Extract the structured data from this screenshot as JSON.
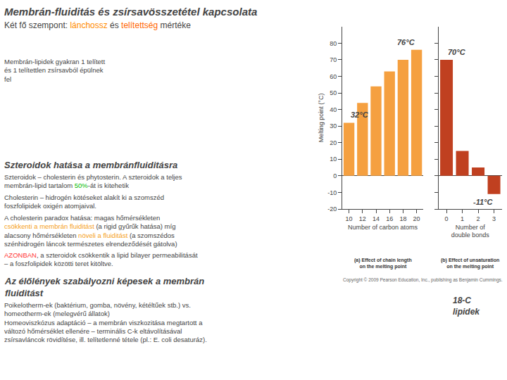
{
  "title": "Membrán-fluiditás és zsírsavösszetétel kapcsolata",
  "subtitle": [
    {
      "text": "Két fő szempont: "
    },
    {
      "text": "lánchossz",
      "color": "#FF8C00"
    },
    {
      "text": " és "
    },
    {
      "text": "telítettség",
      "color": "#FF6600"
    },
    {
      "text": " mértéke"
    }
  ],
  "sections": [
    {
      "paragraphs": [
        [
          [
            {
              "text": "Membrán-lipidek gyakran 1 telített"
            }
          ],
          [
            {
              "text": "és 1 telítettlen zsírsavból épülnek"
            }
          ],
          [
            {
              "text": "fel"
            }
          ]
        ]
      ]
    },
    {
      "title": "Szteroidok hatása a membránfluiditásra",
      "paragraphs": [
        [
          [
            {
              "text": "Szteroidok – cholesterin és phytosterin. A szteroidok a teljes"
            }
          ],
          [
            {
              "text": "membrán-lipid tartalom "
            },
            {
              "text": "50%",
              "color": "#00BB00"
            },
            {
              "text": "-át is kitehetik"
            }
          ]
        ],
        [
          [
            {
              "text": "Cholesterin – hidrogén kötéseket alakít ki a szomszéd"
            }
          ],
          [
            {
              "text": "foszfolipidek oxigén atomjaival."
            }
          ]
        ],
        [
          [
            {
              "text": "A "
            },
            {
              "text": "cholesterin paradox hatása"
            },
            {
              "text": ": magas hőmérsékleten"
            }
          ],
          [
            {
              "text": "csökkenti a membrán fluiditást",
              "color": "#F5A020"
            },
            {
              "text": " (a rigid gyűrűk hatása) míg"
            }
          ],
          [
            {
              "text": "alacsony hőmérsékleten "
            },
            {
              "text": "növeli a fluiditást",
              "color": "#F5A020"
            },
            {
              "text": " (a szomszédos"
            }
          ],
          [
            {
              "text": "szénhidrogén láncok természetes elrendeződését gátolva)"
            }
          ]
        ],
        [
          [
            {
              "text": "AZONBAN",
              "color": "#FF3333"
            },
            {
              "text": ", a szteroidok csökkentik a lipid bilayer permeabilitását"
            }
          ],
          [
            {
              "text": "– a foszfolipidek közötti teret kitöltve."
            }
          ]
        ]
      ]
    },
    {
      "title": "Az élőlények szabályozni képesek a membrán\nfluiditást",
      "paragraphs": [
        [
          [
            {
              "text": "Poikelotherm-ek"
            },
            {
              "text": " (baktérium, gomba, növény, kétéltűek stb.) "
            },
            {
              "text": "vs."
            }
          ],
          [
            {
              "text": "homeotherm-ek"
            },
            {
              "text": " (melegvérű állatok)"
            }
          ],
          [
            {
              "text": "Homeoviszkózus adaptáció"
            },
            {
              "text": " – a membrán viszkozitása megtartott a"
            }
          ],
          [
            {
              "text": "változó hőmérséklet ellenére – terminális C-k eltávolításával"
            }
          ],
          [
            {
              "text": "zsírsavláncok rövidítése, ill. telítetlenné tétele (pl.: E. coli desaturáz)."
            }
          ]
        ]
      ]
    }
  ],
  "annotations": [
    {
      "text": "Copyright © 2009 Pearson Education, Inc., publishing as Benjamin Cummings."
    },
    {
      "text": "18-C\nlipidek"
    }
  ],
  "chart_data": [
    {
      "type": "bar",
      "title": "(a) Effect of chain length\non the melting point",
      "categories": [
        "10",
        "12",
        "14",
        "16",
        "18",
        "20"
      ],
      "values": [
        32,
        44,
        54,
        63,
        70,
        76
      ],
      "color": "#F5A040",
      "xlabel": "Number of carbon atoms",
      "ylabel": "Melting point (°C)",
      "ylim": [
        -20,
        90
      ],
      "yticks": [
        -20,
        -10,
        0,
        10,
        20,
        30,
        40,
        50,
        60,
        70,
        80
      ],
      "grid": false,
      "annotations": [
        {
          "text": "32°C",
          "x": "10"
        },
        {
          "text": "76°C",
          "x": "20"
        }
      ]
    },
    {
      "type": "bar",
      "title": "(b) Effect of unsaturation\non the melting point",
      "categories": [
        "0",
        "1",
        "2",
        "3"
      ],
      "values": [
        70,
        15,
        5,
        -11
      ],
      "color": "#C04020",
      "xlabel": "Number of\ndouble bonds",
      "ylim": [
        -20,
        90
      ],
      "yticks": [
        -20,
        -10,
        0,
        10,
        20,
        30,
        40,
        50,
        60,
        70,
        80
      ],
      "grid": false,
      "tick_labels": "x",
      "annotations": [
        {
          "text": "70°C",
          "x": "0"
        },
        {
          "text": "-11°C",
          "x": "3"
        }
      ]
    }
  ]
}
